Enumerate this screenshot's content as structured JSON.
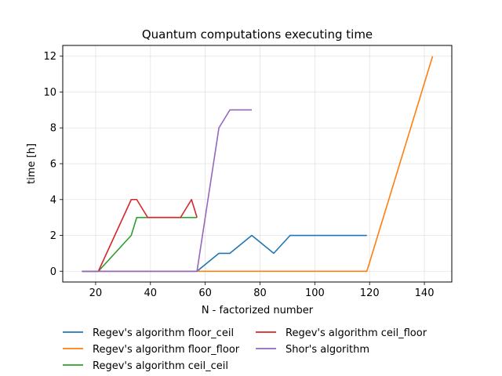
{
  "chart_data": {
    "type": "line",
    "title": "Quantum computations executing time",
    "xlabel": "N - factorized number",
    "ylabel": "time [h]",
    "xlim": [
      8,
      150
    ],
    "ylim": [
      -0.6,
      12.6
    ],
    "xticks": [
      20,
      40,
      60,
      80,
      100,
      120,
      140
    ],
    "yticks": [
      0,
      2,
      4,
      6,
      8,
      10,
      12
    ],
    "grid": true,
    "legend_position": "bottom-center",
    "series": [
      {
        "name": "Regev's algorithm floor_ceil",
        "color": "#1f77b4",
        "x": [
          15,
          21,
          57,
          65,
          69,
          77,
          85,
          91,
          119
        ],
        "y": [
          0,
          0,
          0,
          1,
          1,
          2,
          1,
          2,
          2
        ]
      },
      {
        "name": "Regev's algorithm floor_floor",
        "color": "#ff7f0e",
        "x": [
          15,
          119,
          143
        ],
        "y": [
          0,
          0,
          12
        ]
      },
      {
        "name": "Regev's algorithm ceil_ceil",
        "color": "#2ca02c",
        "x": [
          15,
          21,
          33,
          35,
          39,
          51,
          55,
          57
        ],
        "y": [
          0,
          0,
          2,
          3,
          3,
          3,
          3,
          3
        ]
      },
      {
        "name": "Regev's algorithm ceil_floor",
        "color": "#d62728",
        "x": [
          15,
          21,
          33,
          35,
          39,
          51,
          55,
          57
        ],
        "y": [
          0,
          0,
          4,
          4,
          3,
          3,
          4,
          3
        ]
      },
      {
        "name": "Shor's algorithm",
        "color": "#9467bd",
        "x": [
          15,
          21,
          57,
          65,
          69,
          77
        ],
        "y": [
          0,
          0,
          0,
          8,
          9,
          9
        ]
      }
    ]
  }
}
